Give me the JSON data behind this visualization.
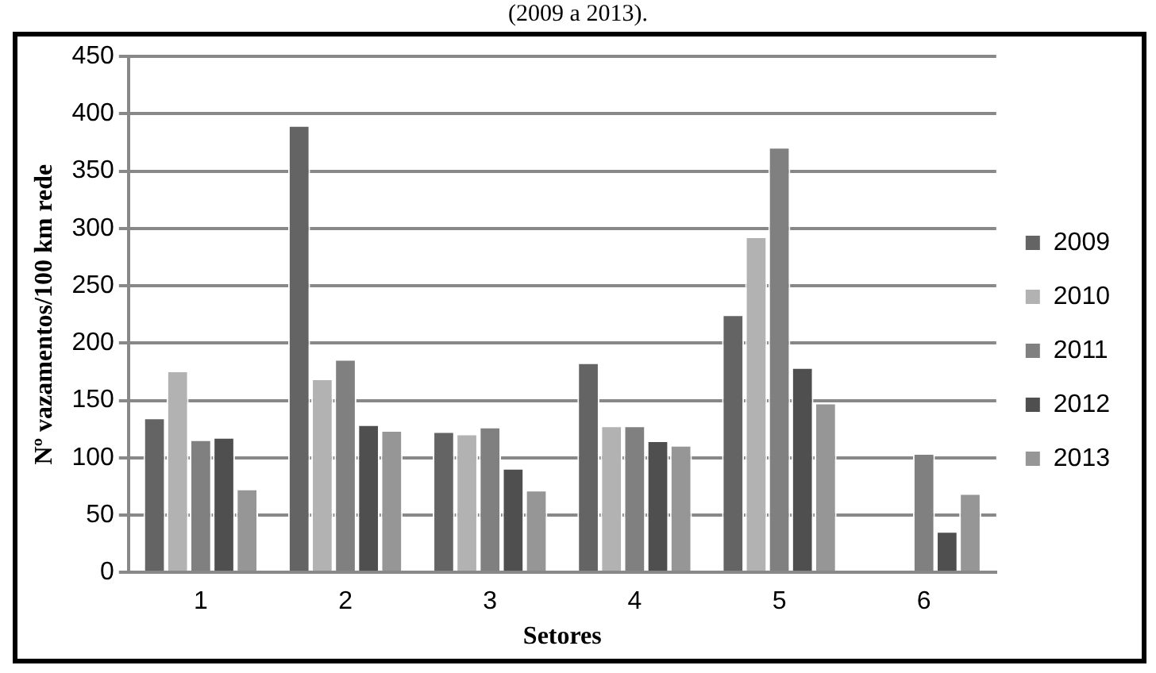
{
  "chart_data": {
    "type": "bar",
    "title": "(2009 a 2013).",
    "xlabel": "Setores",
    "ylabel": "Nº vazamentos/100 km rede",
    "categories": [
      "1",
      "2",
      "3",
      "4",
      "5",
      "6"
    ],
    "series": [
      {
        "name": "2009",
        "color": "#646464",
        "values": [
          135,
          390,
          123,
          183,
          225,
          null
        ]
      },
      {
        "name": "2010",
        "color": "#b2b2b2",
        "values": [
          176,
          169,
          121,
          128,
          293,
          null
        ]
      },
      {
        "name": "2011",
        "color": "#808080",
        "values": [
          116,
          186,
          127,
          128,
          371,
          104
        ]
      },
      {
        "name": "2012",
        "color": "#4f4f4f",
        "values": [
          118,
          129,
          91,
          115,
          179,
          36
        ]
      },
      {
        "name": "2013",
        "color": "#969696",
        "values": [
          73,
          124,
          72,
          111,
          148,
          69
        ]
      }
    ],
    "ylim": [
      0,
      450
    ],
    "yticks": [
      0,
      50,
      100,
      150,
      200,
      250,
      300,
      350,
      400,
      450
    ],
    "grid": "y",
    "legend": "right"
  }
}
